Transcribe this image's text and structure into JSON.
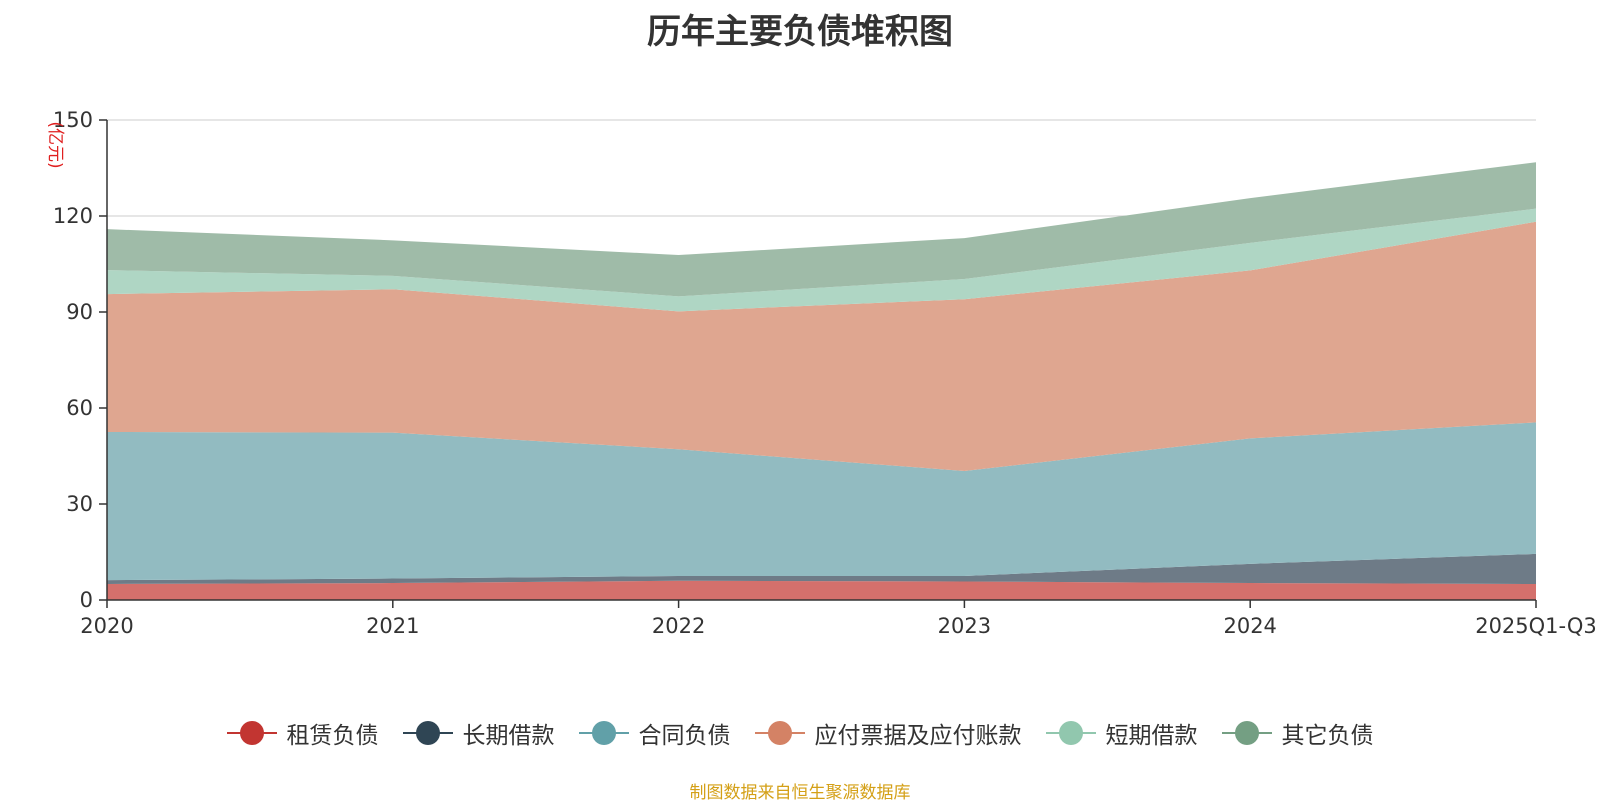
{
  "chart_data": {
    "type": "area",
    "stacked": true,
    "title": "历年主要负债堆积图",
    "unit_label": "(亿元)",
    "categories": [
      "2020",
      "2021",
      "2022",
      "2023",
      "2024",
      "2025Q1-Q3"
    ],
    "ylim": [
      0,
      150
    ],
    "yticks": [
      0,
      30,
      60,
      90,
      120,
      150
    ],
    "grid": true,
    "legend_position": "bottom",
    "series": [
      {
        "name": "租赁负债",
        "color": "#c23531",
        "fill": "#d4706c",
        "values": [
          5.0,
          5.3,
          6.0,
          5.8,
          5.3,
          5.0
        ]
      },
      {
        "name": "长期借款",
        "color": "#2f4554",
        "fill": "#6e7b87",
        "values": [
          1.2,
          1.4,
          1.5,
          1.7,
          6.0,
          9.4
        ]
      },
      {
        "name": "合同负债",
        "color": "#61a0a8",
        "fill": "#92bbc1",
        "values": [
          46.3,
          45.6,
          39.6,
          32.8,
          39.2,
          41.1
        ]
      },
      {
        "name": "应付票据及应付账款",
        "color": "#d48265",
        "fill": "#dfa690",
        "values": [
          43.1,
          44.8,
          43.1,
          53.7,
          52.5,
          62.7
        ]
      },
      {
        "name": "短期借款",
        "color": "#91c7ae",
        "fill": "#afd6c4",
        "values": [
          7.5,
          4.2,
          4.7,
          6.3,
          8.6,
          4.1
        ]
      },
      {
        "name": "其它负债",
        "color": "#749f83",
        "fill": "#9fbba8",
        "values": [
          12.8,
          11.1,
          12.9,
          12.8,
          14.0,
          14.5
        ]
      }
    ]
  },
  "source_note": "制图数据来自恒生聚源数据库"
}
